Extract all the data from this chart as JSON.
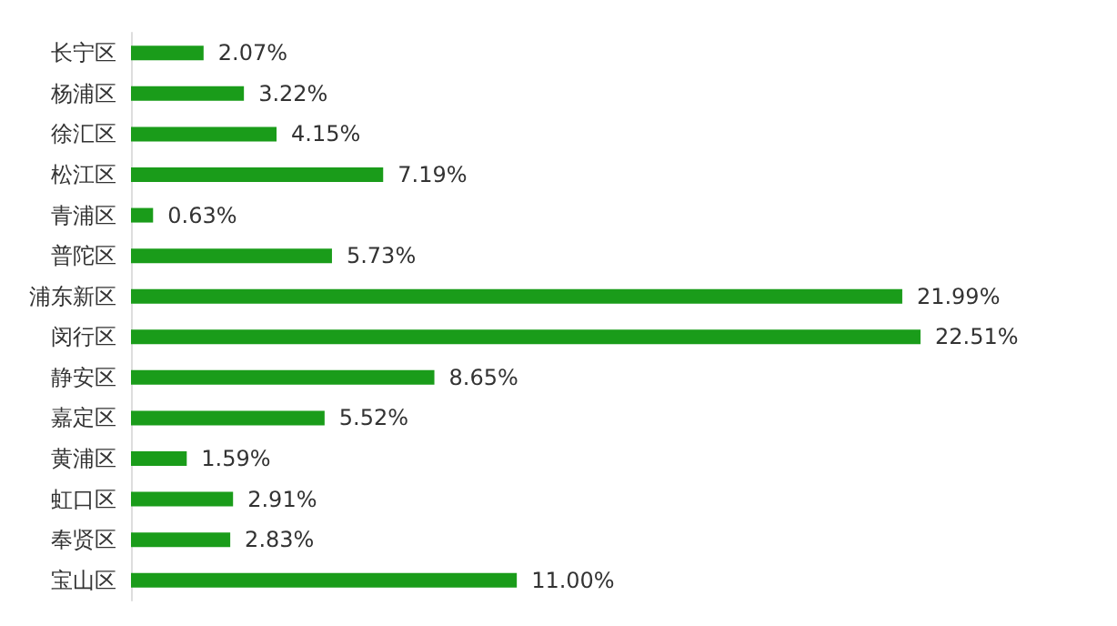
{
  "chart_data": {
    "type": "bar",
    "orientation": "horizontal",
    "categories": [
      "长宁区",
      "杨浦区",
      "徐汇区",
      "松江区",
      "青浦区",
      "普陀区",
      "浦东新区",
      "闵行区",
      "静安区",
      "嘉定区",
      "黄浦区",
      "虹口区",
      "奉贤区",
      "宝山区"
    ],
    "values": [
      2.07,
      3.22,
      4.15,
      7.19,
      0.63,
      5.73,
      21.99,
      22.51,
      8.65,
      5.52,
      1.59,
      2.91,
      2.83,
      11.0
    ],
    "value_labels": [
      "2.07%",
      "3.22%",
      "4.15%",
      "7.19%",
      "0.63%",
      "5.73%",
      "21.99%",
      "22.51%",
      "8.65%",
      "5.52%",
      "1.59%",
      "2.91%",
      "2.83%",
      "11.00%"
    ],
    "color": "#1a9c1a"
  }
}
